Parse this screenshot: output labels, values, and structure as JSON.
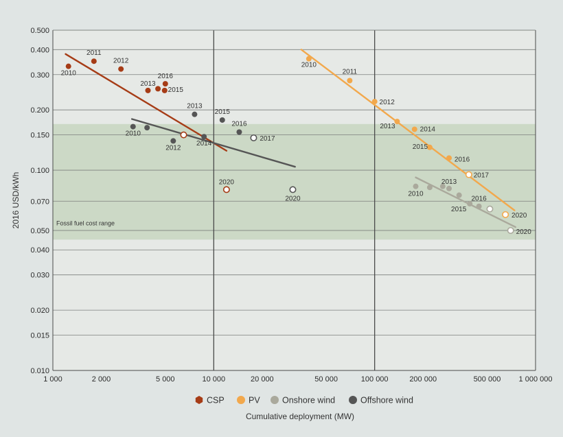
{
  "chart_data": {
    "type": "scatter",
    "xlabel": "Cumulative deployment (MW)",
    "ylabel": "2016 USD/kWh",
    "x_scale": "log",
    "y_scale": "log",
    "xlim": [
      1000,
      1000000
    ],
    "ylim": [
      0.01,
      0.5
    ],
    "x_ticks": [
      {
        "v": 1000,
        "label": "1 000"
      },
      {
        "v": 2000,
        "label": "2 000"
      },
      {
        "v": 5000,
        "label": "5 000"
      },
      {
        "v": 10000,
        "label": "10 000"
      },
      {
        "v": 20000,
        "label": "20 000"
      },
      {
        "v": 50000,
        "label": "50 000"
      },
      {
        "v": 100000,
        "label": "100 000"
      },
      {
        "v": 200000,
        "label": "200 000"
      },
      {
        "v": 500000,
        "label": "500 000"
      },
      {
        "v": 1000000,
        "label": "1 000 000"
      }
    ],
    "x_major_lines": [
      10000,
      100000
    ],
    "y_ticks": [
      {
        "v": 0.5,
        "label": "0.500"
      },
      {
        "v": 0.4,
        "label": "0.400"
      },
      {
        "v": 0.3,
        "label": "0.300"
      },
      {
        "v": 0.2,
        "label": "0.200"
      },
      {
        "v": 0.15,
        "label": "0.150"
      },
      {
        "v": 0.1,
        "label": "0.100"
      },
      {
        "v": 0.07,
        "label": "0.070"
      },
      {
        "v": 0.05,
        "label": "0.050"
      },
      {
        "v": 0.04,
        "label": "0.040"
      },
      {
        "v": 0.03,
        "label": "0.030"
      },
      {
        "v": 0.02,
        "label": "0.020"
      },
      {
        "v": 0.015,
        "label": "0.015"
      },
      {
        "v": 0.01,
        "label": "0.010"
      }
    ],
    "grid": true,
    "band": {
      "label": "Fossil fuel cost range",
      "ymin": 0.045,
      "ymax": 0.17,
      "color": "#c7d6bf"
    },
    "legend_position": "bottom",
    "series": [
      {
        "name": "CSP",
        "color": "#a63c16",
        "marker": "hexagon",
        "points": [
          {
            "x": 1250,
            "y": 0.33,
            "label": "2010"
          },
          {
            "x": 1800,
            "y": 0.35,
            "label": "2011"
          },
          {
            "x": 2650,
            "y": 0.32,
            "label": "2012"
          },
          {
            "x": 3900,
            "y": 0.25,
            "label": "2013"
          },
          {
            "x": 4500,
            "y": 0.255
          },
          {
            "x": 4950,
            "y": 0.25,
            "label": "2015"
          },
          {
            "x": 5000,
            "y": 0.27,
            "label": "2016"
          },
          {
            "x": 6500,
            "y": 0.15,
            "open": true
          },
          {
            "x": 12000,
            "y": 0.08,
            "label": "2020",
            "open": true
          }
        ],
        "trend": [
          {
            "x": 1200,
            "y": 0.38
          },
          {
            "x": 12000,
            "y": 0.125
          }
        ]
      },
      {
        "name": "PV",
        "color": "#f2a84c",
        "marker": "circle",
        "points": [
          {
            "x": 39000,
            "y": 0.36,
            "label": "2010"
          },
          {
            "x": 70000,
            "y": 0.28,
            "label": "2011"
          },
          {
            "x": 100000,
            "y": 0.22,
            "label": "2012"
          },
          {
            "x": 138000,
            "y": 0.175,
            "label": "2013"
          },
          {
            "x": 177000,
            "y": 0.16,
            "label": "2014"
          },
          {
            "x": 220000,
            "y": 0.13,
            "label": "2015"
          },
          {
            "x": 290000,
            "y": 0.115,
            "label": "2016"
          },
          {
            "x": 385000,
            "y": 0.095,
            "label": "2017",
            "open": true
          },
          {
            "x": 650000,
            "y": 0.06,
            "label": "2020",
            "open": true
          }
        ],
        "trend": [
          {
            "x": 35000,
            "y": 0.4
          },
          {
            "x": 740000,
            "y": 0.063
          }
        ]
      },
      {
        "name": "Onshore wind",
        "color": "#aaa99c",
        "marker": "circle",
        "points": [
          {
            "x": 180000,
            "y": 0.083,
            "label": "2010"
          },
          {
            "x": 220000,
            "y": 0.082
          },
          {
            "x": 265000,
            "y": 0.083
          },
          {
            "x": 290000,
            "y": 0.081,
            "label": "2013"
          },
          {
            "x": 335000,
            "y": 0.075
          },
          {
            "x": 390000,
            "y": 0.068,
            "label": "2015"
          },
          {
            "x": 445000,
            "y": 0.066,
            "label": "2016"
          },
          {
            "x": 520000,
            "y": 0.064,
            "open": true
          },
          {
            "x": 700000,
            "y": 0.05,
            "label": "2020",
            "open": true
          }
        ],
        "trend": [
          {
            "x": 180000,
            "y": 0.092
          },
          {
            "x": 750000,
            "y": 0.052
          }
        ]
      },
      {
        "name": "Offshore wind",
        "color": "#555555",
        "marker": "circle",
        "points": [
          {
            "x": 3150,
            "y": 0.165,
            "label": "2010"
          },
          {
            "x": 3850,
            "y": 0.163
          },
          {
            "x": 5600,
            "y": 0.14,
            "label": "2012"
          },
          {
            "x": 7600,
            "y": 0.19,
            "label": "2013"
          },
          {
            "x": 8700,
            "y": 0.147,
            "label": "2014"
          },
          {
            "x": 11300,
            "y": 0.178,
            "label": "2015"
          },
          {
            "x": 14400,
            "y": 0.155,
            "label": "2016"
          },
          {
            "x": 17700,
            "y": 0.145,
            "label": "2017",
            "open": true
          },
          {
            "x": 31000,
            "y": 0.08,
            "label": "2020",
            "open": true
          }
        ],
        "trend": [
          {
            "x": 3100,
            "y": 0.18
          },
          {
            "x": 32000,
            "y": 0.104
          }
        ]
      }
    ]
  }
}
